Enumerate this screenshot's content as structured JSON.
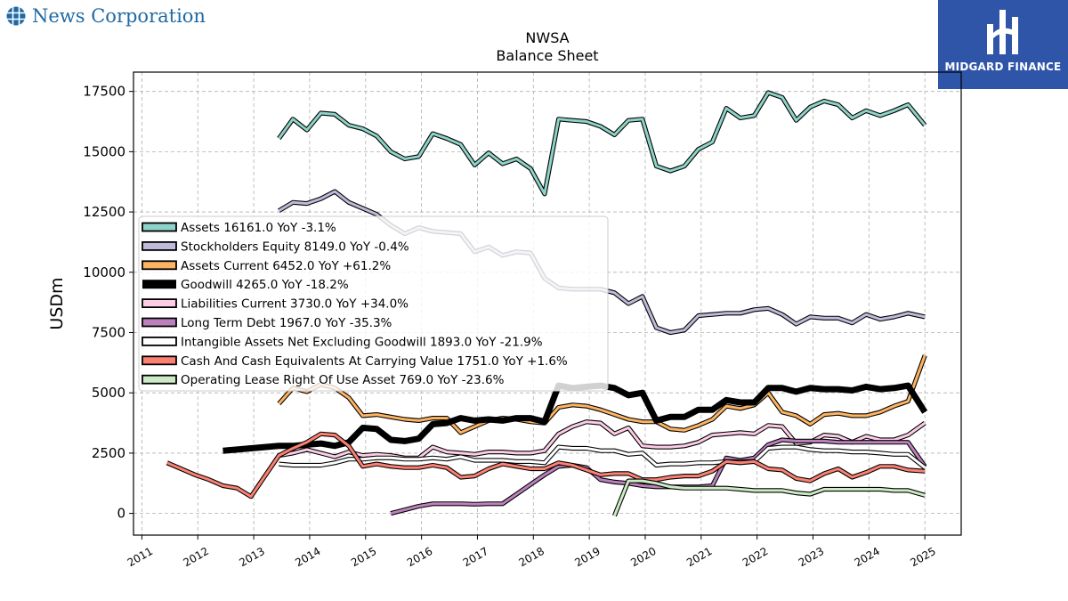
{
  "brand": {
    "name": "News Corporation",
    "icon": "globe-icon",
    "color": "#1f6aa5"
  },
  "logo": {
    "text": "MIDGARD FINANCE",
    "icon": "midgard-logo-icon",
    "background": "#2f55a8"
  },
  "chart_data": {
    "type": "line",
    "title": "NWSA",
    "subtitle": "Balance  Sheet",
    "ylabel": "USDm",
    "xlabel": "",
    "ylim": [
      -900,
      18300
    ],
    "xlim": [
      2010.85,
      2025.65
    ],
    "yticks": [
      0,
      2500,
      5000,
      7500,
      10000,
      12500,
      15000,
      17500
    ],
    "xticks": [
      2011,
      2012,
      2013,
      2014,
      2015,
      2016,
      2017,
      2018,
      2019,
      2020,
      2021,
      2022,
      2023,
      2024,
      2025
    ],
    "grid": true,
    "legend": "upper-left",
    "series": [
      {
        "name": "Assets  16161.0 YoY -3.1%",
        "color": "#8dd3c7",
        "width": 3,
        "x": [
          2013.45,
          2013.7,
          2013.95,
          2014.2,
          2014.45,
          2014.7,
          2014.95,
          2015.2,
          2015.45,
          2015.7,
          2015.95,
          2016.2,
          2016.45,
          2016.7,
          2016.95,
          2017.2,
          2017.45,
          2017.7,
          2017.95,
          2018.2,
          2018.45,
          2018.7,
          2018.95,
          2019.2,
          2019.45,
          2019.7,
          2019.95,
          2020.2,
          2020.45,
          2020.7,
          2020.95,
          2021.2,
          2021.45,
          2021.7,
          2021.95,
          2022.2,
          2022.45,
          2022.7,
          2022.95,
          2023.2,
          2023.45,
          2023.7,
          2023.95,
          2024.2,
          2024.45,
          2024.7,
          2025.0
        ],
        "y": [
          15550,
          16350,
          15900,
          16600,
          16550,
          16100,
          15950,
          15650,
          15000,
          14700,
          14800,
          15750,
          15550,
          15300,
          14450,
          14950,
          14500,
          14700,
          14300,
          13250,
          16350,
          16300,
          16250,
          16050,
          15700,
          16300,
          16350,
          14400,
          14200,
          14400,
          15100,
          15400,
          16800,
          16400,
          16500,
          17450,
          17250,
          16300,
          16850,
          17100,
          16950,
          16400,
          16700,
          16500,
          16700,
          16950,
          16100
        ]
      },
      {
        "name": "Stockholders Equity  8149.0 YoY -0.4%",
        "color": "#bebada",
        "width": 3,
        "x": [
          2013.45,
          2013.7,
          2013.95,
          2014.2,
          2014.45,
          2014.7,
          2014.95,
          2015.2,
          2015.45,
          2015.7,
          2015.95,
          2016.2,
          2016.45,
          2016.7,
          2016.95,
          2017.2,
          2017.45,
          2017.7,
          2017.95,
          2018.2,
          2018.45,
          2018.7,
          2018.95,
          2019.2,
          2019.45,
          2019.7,
          2019.95,
          2020.2,
          2020.45,
          2020.7,
          2020.95,
          2021.2,
          2021.45,
          2021.7,
          2021.95,
          2022.2,
          2022.45,
          2022.7,
          2022.95,
          2023.2,
          2023.45,
          2023.7,
          2023.95,
          2024.2,
          2024.45,
          2024.7,
          2025.0
        ],
        "y": [
          12550,
          12900,
          12850,
          13050,
          13350,
          12900,
          12650,
          12400,
          11950,
          11600,
          11850,
          11700,
          11650,
          11600,
          10850,
          11050,
          10700,
          10850,
          10800,
          9750,
          9350,
          9300,
          9300,
          9300,
          9150,
          8700,
          9000,
          7700,
          7500,
          7600,
          8200,
          8250,
          8300,
          8300,
          8450,
          8500,
          8250,
          7850,
          8150,
          8100,
          8100,
          7900,
          8250,
          8050,
          8150,
          8300,
          8150
        ]
      },
      {
        "name": "Assets Current  6452.0 YoY +61.2%",
        "color": "#fdb462",
        "width": 3,
        "x": [
          2013.45,
          2013.7,
          2013.95,
          2014.2,
          2014.45,
          2014.7,
          2014.95,
          2015.2,
          2015.45,
          2015.7,
          2015.95,
          2016.2,
          2016.45,
          2016.7,
          2016.95,
          2017.2,
          2017.45,
          2017.7,
          2017.95,
          2018.2,
          2018.45,
          2018.7,
          2018.95,
          2019.2,
          2019.45,
          2019.7,
          2019.95,
          2020.2,
          2020.45,
          2020.7,
          2020.95,
          2021.2,
          2021.45,
          2021.7,
          2021.95,
          2022.2,
          2022.45,
          2022.7,
          2022.95,
          2023.2,
          2023.45,
          2023.7,
          2023.95,
          2024.2,
          2024.45,
          2024.7,
          2025.0
        ],
        "y": [
          4550,
          5200,
          5050,
          5350,
          5200,
          4800,
          4050,
          4100,
          4000,
          3900,
          3850,
          3950,
          3950,
          3350,
          3600,
          3850,
          3950,
          3900,
          3800,
          3750,
          4400,
          4500,
          4450,
          4300,
          4100,
          3900,
          3800,
          3800,
          3500,
          3450,
          3650,
          3900,
          4450,
          4350,
          4500,
          5000,
          4200,
          4050,
          3700,
          4100,
          4150,
          4050,
          4050,
          4200,
          4450,
          4650,
          6550
        ]
      },
      {
        "name": "Goodwill  4265.0 YoY -18.2%",
        "color": "#000000",
        "width": 7,
        "x": [
          2012.45,
          2012.7,
          2012.95,
          2013.2,
          2013.45,
          2013.7,
          2013.95,
          2014.2,
          2014.45,
          2014.7,
          2014.95,
          2015.2,
          2015.45,
          2015.7,
          2015.95,
          2016.2,
          2016.45,
          2016.7,
          2016.95,
          2017.2,
          2017.45,
          2017.7,
          2017.95,
          2018.2,
          2018.45,
          2018.7,
          2018.95,
          2019.2,
          2019.45,
          2019.7,
          2019.95,
          2020.2,
          2020.45,
          2020.7,
          2020.95,
          2021.2,
          2021.45,
          2021.7,
          2021.95,
          2022.2,
          2022.45,
          2022.7,
          2022.95,
          2023.2,
          2023.45,
          2023.7,
          2023.95,
          2024.2,
          2024.45,
          2024.7,
          2025.0
        ],
        "y": [
          2600,
          2650,
          2700,
          2750,
          2800,
          2800,
          2850,
          2900,
          2800,
          2950,
          3550,
          3500,
          3050,
          3000,
          3100,
          3700,
          3750,
          3950,
          3850,
          3900,
          3850,
          3950,
          3950,
          3800,
          5300,
          5200,
          5250,
          5300,
          5200,
          4900,
          5000,
          3850,
          4000,
          4000,
          4300,
          4300,
          4700,
          4600,
          4600,
          5200,
          5200,
          5050,
          5200,
          5150,
          5150,
          5100,
          5250,
          5150,
          5200,
          5300,
          4200
        ]
      },
      {
        "name": "Liabilities Current  3730.0 YoY +34.0%",
        "color": "#fccde5",
        "width": 3,
        "x": [
          2013.45,
          2013.7,
          2013.95,
          2014.2,
          2014.45,
          2014.7,
          2014.95,
          2015.2,
          2015.45,
          2015.7,
          2015.95,
          2016.2,
          2016.45,
          2016.7,
          2016.95,
          2017.2,
          2017.45,
          2017.7,
          2017.95,
          2018.2,
          2018.45,
          2018.7,
          2018.95,
          2019.2,
          2019.45,
          2019.7,
          2019.95,
          2020.2,
          2020.45,
          2020.7,
          2020.95,
          2021.2,
          2021.45,
          2021.7,
          2021.95,
          2022.2,
          2022.45,
          2022.7,
          2022.95,
          2023.2,
          2023.45,
          2023.7,
          2023.95,
          2024.2,
          2024.45,
          2024.7,
          2025.0
        ],
        "y": [
          2400,
          2500,
          2650,
          2500,
          2350,
          2550,
          2400,
          2450,
          2400,
          2300,
          2300,
          2750,
          2550,
          2500,
          2450,
          2550,
          2550,
          2500,
          2500,
          2600,
          3300,
          3600,
          3800,
          3750,
          3300,
          3550,
          2800,
          2750,
          2750,
          2800,
          2950,
          3250,
          3300,
          3350,
          3300,
          3650,
          3600,
          2900,
          2950,
          3250,
          3200,
          2950,
          3200,
          3050,
          3050,
          3250,
          3750
        ]
      },
      {
        "name": "Long Term Debt  1967.0 YoY -35.3%",
        "color": "#bc80bd",
        "width": 3,
        "x": [
          2015.45,
          2015.7,
          2015.95,
          2016.2,
          2016.45,
          2016.7,
          2016.95,
          2017.2,
          2017.45,
          2017.7,
          2017.95,
          2018.2,
          2018.45,
          2018.7,
          2018.95,
          2019.2,
          2019.45,
          2019.7,
          2019.95,
          2020.2,
          2020.45,
          2020.7,
          2020.95,
          2021.2,
          2021.45,
          2021.7,
          2021.95,
          2022.2,
          2022.45,
          2022.7,
          2022.95,
          2023.2,
          2023.45,
          2023.7,
          2023.95,
          2024.2,
          2024.45,
          2024.7,
          2025.0
        ],
        "y": [
          0,
          150,
          300,
          400,
          400,
          400,
          380,
          400,
          400,
          800,
          1200,
          1600,
          1950,
          2000,
          1900,
          1400,
          1300,
          1250,
          1150,
          1100,
          1100,
          1100,
          1100,
          1150,
          2300,
          2200,
          2300,
          2850,
          3050,
          3000,
          3000,
          3000,
          2950,
          2950,
          2950,
          2950,
          2950,
          2950,
          1950
        ]
      },
      {
        "name": "Intangible Assets Net Excluding Goodwill  1893.0 YoY -21.9%",
        "color": "#ffffff",
        "width": 3,
        "x": [
          2013.45,
          2013.7,
          2013.95,
          2014.2,
          2014.45,
          2014.7,
          2014.95,
          2015.2,
          2015.45,
          2015.7,
          2015.95,
          2016.2,
          2016.45,
          2016.7,
          2016.95,
          2017.2,
          2017.45,
          2017.7,
          2017.95,
          2018.2,
          2018.45,
          2018.7,
          2018.95,
          2019.2,
          2019.45,
          2019.7,
          2019.95,
          2020.2,
          2020.45,
          2020.7,
          2020.95,
          2021.2,
          2021.45,
          2021.7,
          2021.95,
          2022.2,
          2022.45,
          2022.7,
          2022.95,
          2023.2,
          2023.45,
          2023.7,
          2023.95,
          2024.2,
          2024.45,
          2024.7,
          2025.0
        ],
        "y": [
          2050,
          2000,
          2000,
          2000,
          2100,
          2250,
          2250,
          2300,
          2300,
          2250,
          2250,
          2300,
          2250,
          2350,
          2200,
          2200,
          2200,
          2150,
          2150,
          2100,
          2750,
          2700,
          2700,
          2600,
          2600,
          2450,
          2500,
          2000,
          2050,
          2050,
          2100,
          2100,
          2150,
          2150,
          2150,
          2700,
          2750,
          2750,
          2650,
          2600,
          2600,
          2550,
          2550,
          2500,
          2450,
          2450,
          1900
        ]
      },
      {
        "name": "Cash And Cash Equivalents At Carrying Value  1751.0 YoY +1.6%",
        "color": "#fb8072",
        "width": 3,
        "x": [
          2011.45,
          2011.7,
          2011.95,
          2012.2,
          2012.45,
          2012.7,
          2012.95,
          2013.2,
          2013.45,
          2013.7,
          2013.95,
          2014.2,
          2014.45,
          2014.7,
          2014.95,
          2015.2,
          2015.45,
          2015.7,
          2015.95,
          2016.2,
          2016.45,
          2016.7,
          2016.95,
          2017.2,
          2017.45,
          2017.7,
          2017.95,
          2018.2,
          2018.45,
          2018.7,
          2018.95,
          2019.2,
          2019.45,
          2019.7,
          2019.95,
          2020.2,
          2020.45,
          2020.7,
          2020.95,
          2021.2,
          2021.45,
          2021.7,
          2021.95,
          2022.2,
          2022.45,
          2022.7,
          2022.95,
          2023.2,
          2023.45,
          2023.7,
          2023.95,
          2024.2,
          2024.45,
          2024.7,
          2025.0
        ],
        "y": [
          2100,
          1850,
          1600,
          1400,
          1150,
          1050,
          700,
          1550,
          2400,
          2700,
          2950,
          3300,
          3250,
          2800,
          1950,
          2050,
          1950,
          1900,
          1900,
          2000,
          1900,
          1500,
          1550,
          1850,
          2050,
          1950,
          1850,
          1850,
          2100,
          2000,
          1800,
          1600,
          1650,
          1650,
          1400,
          1400,
          1500,
          1550,
          1550,
          1750,
          2150,
          2100,
          2150,
          1850,
          1800,
          1450,
          1350,
          1650,
          1850,
          1500,
          1700,
          1950,
          1950,
          1800,
          1750
        ]
      },
      {
        "name": "Operating Lease Right Of Use Asset  769.0 YoY -23.6%",
        "color": "#ccebc5",
        "width": 3,
        "x": [
          2019.45,
          2019.7,
          2019.95,
          2020.2,
          2020.45,
          2020.7,
          2020.95,
          2021.2,
          2021.45,
          2021.7,
          2021.95,
          2022.2,
          2022.45,
          2022.7,
          2022.95,
          2023.2,
          2023.45,
          2023.7,
          2023.95,
          2024.2,
          2024.45,
          2024.7,
          2025.0
        ],
        "y": [
          -100,
          1350,
          1350,
          1250,
          1100,
          1050,
          1050,
          1050,
          1050,
          1000,
          950,
          950,
          950,
          850,
          800,
          1000,
          1000,
          1000,
          1000,
          1000,
          950,
          950,
          750
        ]
      }
    ]
  }
}
